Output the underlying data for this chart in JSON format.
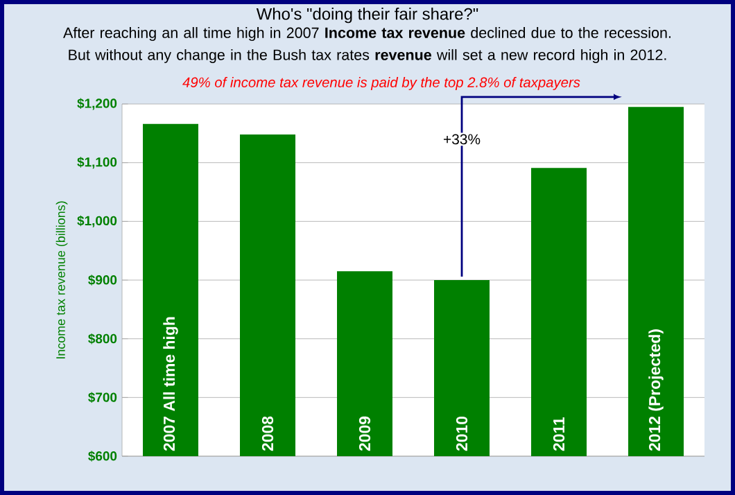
{
  "chart_data": {
    "type": "bar",
    "title": "Who's \"doing their fair share?\"",
    "subtitle": "After reaching an all time high in 2007 **Income tax revenue** declined due to the recession. But without any change in the Bush tax rates **revenue** will set a new record high in 2012.",
    "annotations": [
      "49% of income tax revenue is paid by the top 2.8% of taxpayers",
      "+33%"
    ],
    "ylabel": "Income tax revenue (billions)",
    "categories": [
      "2007 All time high",
      "2008",
      "2009",
      "2010",
      "2011",
      "2012 (Projected)"
    ],
    "values": [
      1166,
      1148,
      915,
      900,
      1091,
      1195
    ],
    "color": "#008000",
    "ylim": [
      600,
      1200
    ],
    "yticks": [
      {
        "value": 600,
        "label": "$600"
      },
      {
        "value": 700,
        "label": "$700"
      },
      {
        "value": 800,
        "label": "$800"
      },
      {
        "value": 900,
        "label": "$900"
      },
      {
        "value": 1000,
        "label": "$1,000"
      },
      {
        "value": 1100,
        "label": "$1,100"
      },
      {
        "value": 1200,
        "label": "$1,200"
      }
    ],
    "grid": "y"
  }
}
